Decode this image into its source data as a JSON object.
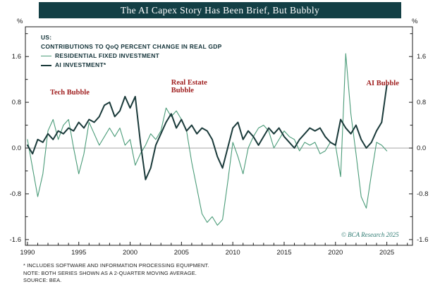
{
  "chart_data": {
    "type": "line",
    "title": "The AI Capex Story Has Been Brief, But Bubbly",
    "subtitle_lines": [
      "US:",
      "CONTRIBUTIONS TO QoQ PERCENT CHANGE IN REAL GDP"
    ],
    "y_axis_unit": "%",
    "xlim": [
      1989.8,
      2027.5
    ],
    "ylim": [
      -1.7,
      2.12
    ],
    "xticks": [
      1990,
      1995,
      2000,
      2005,
      2010,
      2015,
      2020,
      2025
    ],
    "yticks": [
      "1.6",
      "0.8",
      "0.0",
      "-0.8",
      "-1.6"
    ],
    "grid": false,
    "zero_line": true,
    "legend_position": "top-left",
    "x": [
      1990,
      1990.5,
      1991,
      1991.5,
      1992,
      1992.5,
      1993,
      1993.5,
      1994,
      1994.5,
      1995,
      1995.5,
      1996,
      1996.5,
      1997,
      1997.5,
      1998,
      1998.5,
      1999,
      1999.5,
      2000,
      2000.5,
      2001,
      2001.5,
      2002,
      2002.5,
      2003,
      2003.5,
      2004,
      2004.5,
      2005,
      2005.5,
      2006,
      2006.5,
      2007,
      2007.5,
      2008,
      2008.5,
      2009,
      2009.5,
      2010,
      2010.5,
      2011,
      2011.5,
      2012,
      2012.5,
      2013,
      2013.5,
      2014,
      2014.5,
      2015,
      2015.5,
      2016,
      2016.5,
      2017,
      2017.5,
      2018,
      2018.5,
      2019,
      2019.5,
      2020,
      2020.5,
      2021,
      2021.5,
      2022,
      2022.5,
      2023,
      2023.5,
      2024,
      2024.5,
      2025
    ],
    "series": [
      {
        "name": "RESIDENTIAL FIXED INVESTMENT",
        "color": "#4a9b78",
        "width": 1.1,
        "values": [
          0.15,
          -0.35,
          -0.85,
          -0.45,
          0.3,
          0.5,
          0.15,
          0.4,
          0.5,
          0.0,
          -0.45,
          -0.1,
          0.45,
          0.25,
          0.05,
          0.2,
          0.35,
          0.2,
          0.35,
          0.05,
          0.15,
          -0.3,
          -0.1,
          0.05,
          0.25,
          0.15,
          0.3,
          0.7,
          0.55,
          0.65,
          0.5,
          0.3,
          -0.25,
          -0.7,
          -1.15,
          -1.3,
          -1.2,
          -1.35,
          -1.25,
          -0.6,
          0.1,
          -0.15,
          -0.45,
          0.0,
          0.2,
          0.35,
          0.4,
          0.3,
          0.0,
          0.15,
          0.3,
          0.2,
          0.15,
          -0.05,
          0.1,
          0.05,
          0.1,
          -0.1,
          -0.05,
          0.1,
          0.05,
          -0.5,
          1.65,
          0.6,
          -0.1,
          -0.85,
          -1.05,
          -0.45,
          0.1,
          0.05,
          -0.05
        ]
      },
      {
        "name": "AI INVESTMENT*",
        "color": "#1a3a3a",
        "width": 2,
        "values": [
          0.05,
          -0.1,
          0.15,
          0.1,
          0.25,
          0.15,
          0.3,
          0.25,
          0.35,
          0.3,
          0.45,
          0.35,
          0.5,
          0.45,
          0.55,
          0.75,
          0.8,
          0.55,
          0.65,
          0.9,
          0.7,
          0.9,
          0.1,
          -0.55,
          -0.35,
          0.05,
          0.25,
          0.45,
          0.6,
          0.35,
          0.5,
          0.3,
          0.4,
          0.25,
          0.35,
          0.3,
          0.15,
          -0.15,
          -0.35,
          0.0,
          0.35,
          0.45,
          0.15,
          0.3,
          0.2,
          0.05,
          0.2,
          0.35,
          0.25,
          0.35,
          0.2,
          0.1,
          0.0,
          0.15,
          0.25,
          0.35,
          0.3,
          0.35,
          0.2,
          0.1,
          0.05,
          0.5,
          0.35,
          0.25,
          0.4,
          0.15,
          0.0,
          0.1,
          0.3,
          0.45,
          1.1
        ]
      }
    ],
    "annotations": [
      {
        "id": "tech-bubble",
        "lines": [
          "Tech Bubble"
        ],
        "x": 1992.2,
        "y": 0.93,
        "color": "#a02020"
      },
      {
        "id": "real-estate-bubble",
        "lines": [
          "Real Estate",
          "Bubble"
        ],
        "x": 2004.0,
        "y": 1.1,
        "color": "#a02020"
      },
      {
        "id": "ai-bubble",
        "lines": [
          "AI Bubble"
        ],
        "x": 2023.0,
        "y": 1.08,
        "color": "#a02020"
      }
    ],
    "watermark": "© BCA Research 2025",
    "colors": {
      "title_bar": "#133f45",
      "annotation_red": "#a02020",
      "watermark_teal": "#2f7b72",
      "residential_green": "#4a9b78",
      "ai_dark": "#1a3a3a"
    }
  },
  "footnotes": [
    "*  INCLUDES SOFTWARE AND INFORMATION PROCESSING EQUIPMENT.",
    "NOTE: BOTH SERIES SHOWN AS A 2-QUARTER MOVING AVERAGE.",
    "SOURCE: BEA."
  ]
}
